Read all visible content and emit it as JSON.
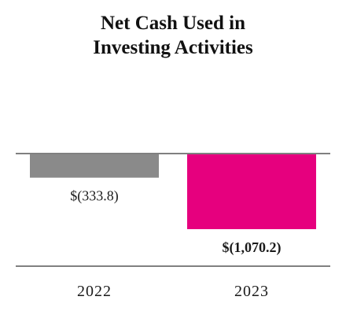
{
  "chart_data": {
    "type": "bar",
    "title": [
      "Net Cash Used in",
      "Investing Activities"
    ],
    "categories": [
      "2022",
      "2023"
    ],
    "values": [
      -333.8,
      -1070.2
    ],
    "data_labels": [
      "$(333.8)",
      "$(1,070.2)"
    ],
    "label_bold": [
      false,
      true
    ],
    "colors": [
      "#8a8a8a",
      "#e6007e"
    ],
    "axis_color": "#808080",
    "ylim": [
      -1070.2,
      0
    ],
    "grid": false,
    "legend": "none"
  }
}
